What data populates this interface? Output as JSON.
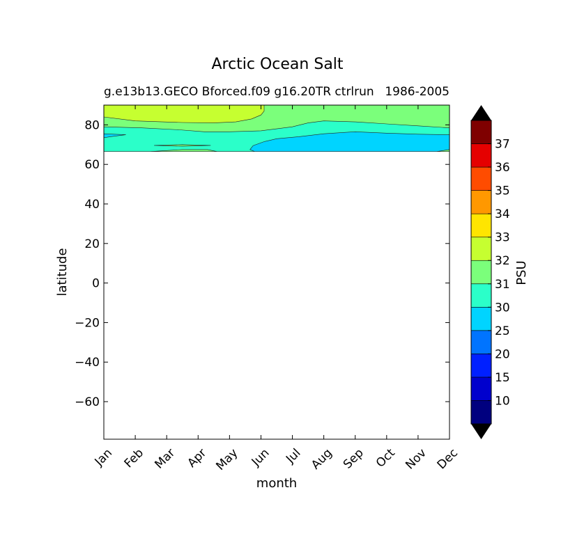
{
  "chart_data": {
    "type": "contour",
    "title": "Arctic Ocean Salt",
    "subtitle_left": "g.e13b13.GECO Bforced.f09 g16.20TR ctrlrun",
    "subtitle_right": "1986-2005",
    "xlabel": "month",
    "ylabel": "latitude",
    "x_categories": [
      "Jan",
      "Feb",
      "Mar",
      "Apr",
      "May",
      "Jun",
      "Jul",
      "Aug",
      "Sep",
      "Oct",
      "Nov",
      "Dec"
    ],
    "ylim": [
      -79,
      90
    ],
    "y_ticks": [
      -60,
      -40,
      -20,
      0,
      20,
      40,
      60,
      80
    ],
    "colorbar": {
      "label": "PSU",
      "levels": [
        5,
        10,
        15,
        20,
        25,
        30,
        31,
        32,
        33,
        34,
        35,
        36,
        37,
        38
      ],
      "tick_labels": [
        "10",
        "15",
        "20",
        "25",
        "30",
        "31",
        "32",
        "33",
        "34",
        "35",
        "36",
        "37"
      ],
      "colors": [
        "#00007f",
        "#0000cd",
        "#0020ff",
        "#0074ff",
        "#00d4ff",
        "#2bffc9",
        "#7bff7b",
        "#c6ff30",
        "#ffe500",
        "#ff9800",
        "#ff4c00",
        "#e50000",
        "#7f0000"
      ],
      "extend": "both",
      "under_color": "#000000",
      "over_color": "#000000"
    },
    "regions": [
      {
        "range": "31-32",
        "color": "#7bff7b",
        "boundary": [
          [
            0,
            90
          ],
          [
            11,
            90
          ],
          [
            11,
            66.5
          ],
          [
            0,
            66.5
          ]
        ]
      },
      {
        "range": "32-33",
        "color": "#c6ff30",
        "boundary": [
          [
            0,
            90
          ],
          [
            5.1,
            90
          ],
          [
            5.1,
            87
          ],
          [
            5.0,
            85
          ],
          [
            4.7,
            83
          ],
          [
            4.2,
            81.5
          ],
          [
            3.5,
            81
          ],
          [
            2.5,
            81.2
          ],
          [
            1.0,
            82
          ],
          [
            0,
            84
          ]
        ]
      },
      {
        "range": "30-31",
        "color": "#2bffc9",
        "boundary": [
          [
            0,
            79
          ],
          [
            1.2,
            78.5
          ],
          [
            2.4,
            77.5
          ],
          [
            3.2,
            76.5
          ],
          [
            4.0,
            76.5
          ],
          [
            5.0,
            77
          ],
          [
            5.5,
            78
          ],
          [
            6.0,
            79
          ],
          [
            6.5,
            81
          ],
          [
            7.0,
            82
          ],
          [
            8.0,
            81.5
          ],
          [
            9.0,
            80.5
          ],
          [
            10.0,
            79.5
          ],
          [
            11.0,
            78.5
          ],
          [
            11,
            66.5
          ],
          [
            0,
            66.5
          ]
        ]
      },
      {
        "range": "25-30",
        "color": "#00d4ff",
        "boundary": [
          [
            4.8,
            66.5
          ],
          [
            4.65,
            67.5
          ],
          [
            4.75,
            69.5
          ],
          [
            5.1,
            71.5
          ],
          [
            5.5,
            73
          ],
          [
            6.2,
            74
          ],
          [
            7.0,
            75.5
          ],
          [
            8.0,
            76.5
          ],
          [
            9.0,
            75.8
          ],
          [
            10.0,
            75.3
          ],
          [
            11.0,
            75
          ],
          [
            11,
            66.5
          ]
        ]
      },
      {
        "range": "25-30",
        "color": "#00d4ff",
        "boundary": [
          [
            0,
            75.5
          ],
          [
            0.7,
            75
          ],
          [
            0.2,
            74
          ],
          [
            0,
            73.5
          ]
        ]
      },
      {
        "range": "31-32",
        "color": "#7bff7b",
        "boundary": [
          [
            1.5,
            66.5
          ],
          [
            2.5,
            67.5
          ],
          [
            3.3,
            67.5
          ],
          [
            3.6,
            66.5
          ]
        ]
      },
      {
        "range": "31-32",
        "color": "#7bff7b",
        "boundary": [
          [
            1.6,
            69.6
          ],
          [
            2.5,
            70
          ],
          [
            3.4,
            69.6
          ],
          [
            2.5,
            69.2
          ]
        ]
      },
      {
        "range": "31-32",
        "color": "#7bff7b",
        "boundary": [
          [
            10.6,
            66.5
          ],
          [
            11,
            66.5
          ],
          [
            11,
            67.5
          ]
        ]
      }
    ],
    "data_min_latitude": 66.5
  }
}
